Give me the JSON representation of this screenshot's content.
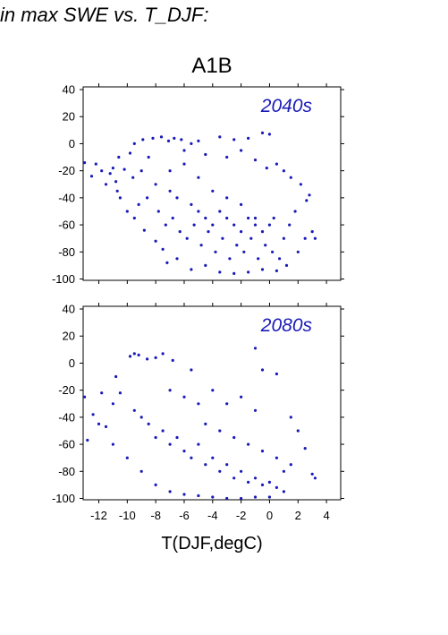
{
  "header": {
    "title": "in max SWE vs. T_DJF:"
  },
  "colors": {
    "points": "#1a1ab8",
    "frame": "#000000"
  },
  "chart_data": {
    "type": "scatter",
    "scenario": "A1B",
    "xlabel": "T(DJF,degC)",
    "xlim": [
      -13.1,
      5.0
    ],
    "xticks": [
      -12,
      -10,
      -8,
      -6,
      -4,
      -2,
      0,
      2,
      4
    ],
    "panels": [
      {
        "label": "2040s",
        "ylim": [
          -101,
          42
        ],
        "yticks": [
          40,
          20,
          0,
          -20,
          -40,
          -60,
          -80,
          -100
        ],
        "points": [
          [
            -13.0,
            -14
          ],
          [
            -12.2,
            -15
          ],
          [
            -11.0,
            -18
          ],
          [
            -12.5,
            -24
          ],
          [
            -11.5,
            -30
          ],
          [
            -10.8,
            -28
          ],
          [
            -10.2,
            -19
          ],
          [
            -10.6,
            -10
          ],
          [
            -9.8,
            -7
          ],
          [
            -9.5,
            0
          ],
          [
            -8.9,
            3
          ],
          [
            -8.2,
            4
          ],
          [
            -7.6,
            5
          ],
          [
            -7.1,
            2
          ],
          [
            -6.7,
            4
          ],
          [
            -6.2,
            3
          ],
          [
            -5.5,
            0
          ],
          [
            -5.0,
            2
          ],
          [
            -3.5,
            5
          ],
          [
            -2.5,
            3
          ],
          [
            -1.5,
            4
          ],
          [
            -0.5,
            8
          ],
          [
            0.0,
            7
          ],
          [
            -10.5,
            -40
          ],
          [
            -10.0,
            -50
          ],
          [
            -9.5,
            -55
          ],
          [
            -8.8,
            -64
          ],
          [
            -8.0,
            -72
          ],
          [
            -7.5,
            -78
          ],
          [
            -7.2,
            -88
          ],
          [
            -6.5,
            -85
          ],
          [
            -5.5,
            -93
          ],
          [
            -4.5,
            -90
          ],
          [
            -3.5,
            -95
          ],
          [
            -2.5,
            -96
          ],
          [
            -1.5,
            -95
          ],
          [
            -0.5,
            -93
          ],
          [
            0.5,
            -94
          ],
          [
            1.2,
            -90
          ],
          [
            2.0,
            -80
          ],
          [
            2.5,
            -70
          ],
          [
            3.0,
            -65
          ],
          [
            3.2,
            -70
          ],
          [
            2.8,
            -38
          ],
          [
            2.2,
            -30
          ],
          [
            1.5,
            -25
          ],
          [
            1.0,
            -20
          ],
          [
            0.5,
            -15
          ],
          [
            2.6,
            -42
          ],
          [
            1.8,
            -50
          ],
          [
            1.4,
            -60
          ],
          [
            -9.0,
            -20
          ],
          [
            -8.5,
            -10
          ],
          [
            -8.0,
            -30
          ],
          [
            -7.0,
            -20
          ],
          [
            -6.0,
            -15
          ],
          [
            -5.0,
            -25
          ],
          [
            -4.0,
            -35
          ],
          [
            -3.0,
            -40
          ],
          [
            -2.0,
            -45
          ],
          [
            -1.0,
            -55
          ],
          [
            0.0,
            -60
          ],
          [
            1.0,
            -70
          ],
          [
            -9.2,
            -45
          ],
          [
            -8.6,
            -40
          ],
          [
            -7.8,
            -50
          ],
          [
            -7.3,
            -60
          ],
          [
            -6.8,
            -55
          ],
          [
            -6.3,
            -65
          ],
          [
            -5.8,
            -70
          ],
          [
            -5.3,
            -60
          ],
          [
            -4.8,
            -75
          ],
          [
            -4.3,
            -65
          ],
          [
            -3.8,
            -80
          ],
          [
            -3.3,
            -70
          ],
          [
            -2.8,
            -85
          ],
          [
            -2.3,
            -75
          ],
          [
            -1.8,
            -80
          ],
          [
            -1.3,
            -70
          ],
          [
            -0.8,
            -85
          ],
          [
            -0.3,
            -75
          ],
          [
            0.2,
            -80
          ],
          [
            0.7,
            -85
          ],
          [
            -11.8,
            -20
          ],
          [
            -11.2,
            -22
          ],
          [
            -10.7,
            -35
          ],
          [
            -9.6,
            -25
          ],
          [
            -6.0,
            -5
          ],
          [
            -4.5,
            -8
          ],
          [
            -3.0,
            -10
          ],
          [
            -2.0,
            -5
          ],
          [
            -1.0,
            -12
          ],
          [
            -0.2,
            -18
          ],
          [
            -7.0,
            -35
          ],
          [
            -6.5,
            -40
          ],
          [
            -5.5,
            -45
          ],
          [
            -5.0,
            -50
          ],
          [
            -4.5,
            -55
          ],
          [
            -4.0,
            -60
          ],
          [
            -3.5,
            -50
          ],
          [
            -3.0,
            -55
          ],
          [
            -2.5,
            -60
          ],
          [
            -2.0,
            -65
          ],
          [
            -1.5,
            -55
          ],
          [
            -1.0,
            -60
          ],
          [
            -0.5,
            -65
          ],
          [
            0.3,
            -55
          ]
        ]
      },
      {
        "label": "2080s",
        "ylim": [
          -101,
          42
        ],
        "yticks": [
          40,
          20,
          0,
          -20,
          -40,
          -60,
          -80,
          -100
        ],
        "points": [
          [
            -13.0,
            -25
          ],
          [
            -12.8,
            -57
          ],
          [
            -12.4,
            -38
          ],
          [
            -11.8,
            -22
          ],
          [
            -11.5,
            -47
          ],
          [
            -11.0,
            -30
          ],
          [
            -10.5,
            -22
          ],
          [
            -10.8,
            -10
          ],
          [
            -9.8,
            5
          ],
          [
            -9.5,
            7
          ],
          [
            -9.2,
            6
          ],
          [
            -8.6,
            3
          ],
          [
            -8.0,
            4
          ],
          [
            -7.5,
            7
          ],
          [
            -6.8,
            2
          ],
          [
            -5.5,
            -5
          ],
          [
            -1.0,
            11
          ],
          [
            -0.5,
            -5
          ],
          [
            0.5,
            -8
          ],
          [
            1.5,
            -40
          ],
          [
            2.0,
            -50
          ],
          [
            2.5,
            -63
          ],
          [
            3.0,
            -82
          ],
          [
            3.2,
            -85
          ],
          [
            1.0,
            -95
          ],
          [
            0.0,
            -99
          ],
          [
            -1.0,
            -99
          ],
          [
            -2.0,
            -100
          ],
          [
            -3.0,
            -100
          ],
          [
            -4.0,
            -99
          ],
          [
            -5.0,
            -98
          ],
          [
            -6.0,
            -97
          ],
          [
            -7.0,
            -95
          ],
          [
            -8.0,
            -90
          ],
          [
            -9.0,
            -80
          ],
          [
            -10.0,
            -70
          ],
          [
            -11.0,
            -60
          ],
          [
            -12.0,
            -45
          ],
          [
            -9.5,
            -35
          ],
          [
            -9.0,
            -40
          ],
          [
            -8.5,
            -45
          ],
          [
            -8.0,
            -55
          ],
          [
            -7.5,
            -50
          ],
          [
            -7.0,
            -60
          ],
          [
            -6.5,
            -55
          ],
          [
            -6.0,
            -65
          ],
          [
            -5.5,
            -70
          ],
          [
            -5.0,
            -60
          ],
          [
            -4.5,
            -75
          ],
          [
            -4.0,
            -70
          ],
          [
            -3.5,
            -80
          ],
          [
            -3.0,
            -75
          ],
          [
            -2.5,
            -85
          ],
          [
            -2.0,
            -80
          ],
          [
            -1.5,
            -88
          ],
          [
            -1.0,
            -85
          ],
          [
            -0.5,
            -90
          ],
          [
            0.0,
            -88
          ],
          [
            0.5,
            -92
          ],
          [
            1.0,
            -80
          ],
          [
            -7.0,
            -20
          ],
          [
            -6.0,
            -25
          ],
          [
            -5.0,
            -30
          ],
          [
            -4.0,
            -20
          ],
          [
            -3.0,
            -30
          ],
          [
            -2.0,
            -25
          ],
          [
            -1.0,
            -35
          ],
          [
            -4.5,
            -45
          ],
          [
            -3.5,
            -50
          ],
          [
            -2.5,
            -55
          ],
          [
            -1.5,
            -60
          ],
          [
            -0.5,
            -65
          ],
          [
            0.5,
            -70
          ],
          [
            1.5,
            -75
          ]
        ]
      }
    ]
  }
}
